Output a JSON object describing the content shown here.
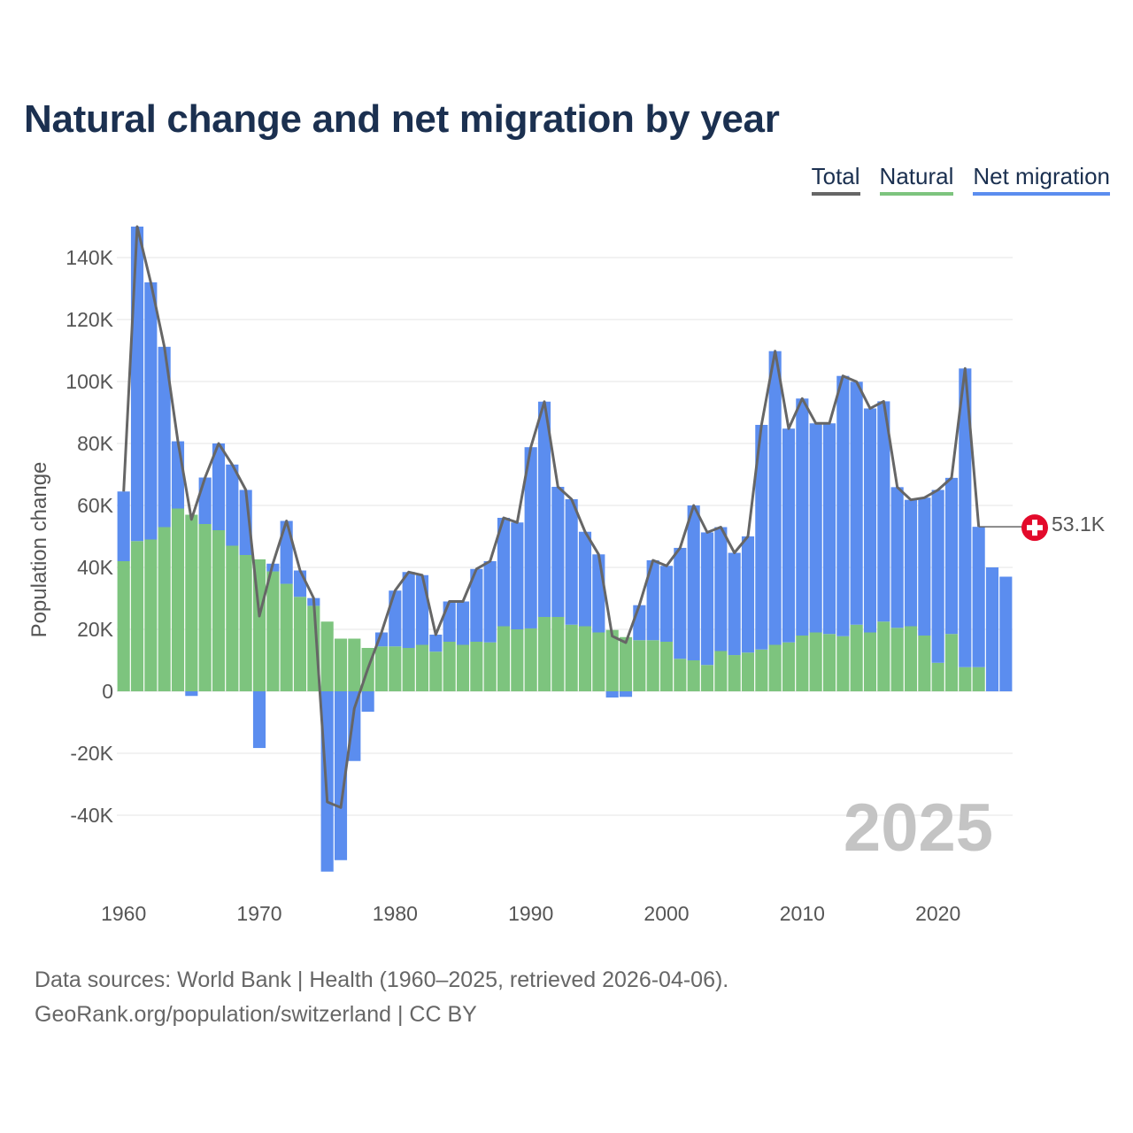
{
  "title": "Natural change and net migration by year",
  "legend": [
    {
      "label": "Total",
      "color": "#666666"
    },
    {
      "label": "Natural",
      "color": "#7dc47e"
    },
    {
      "label": "Net migration",
      "color": "#5b8def"
    }
  ],
  "watermark_year": "2025",
  "end_label": "53.1K",
  "footer": {
    "line1": "Data sources: World Bank | Health (1960–2025, retrieved 2026-04-06).",
    "line2": "GeoRank.org/population/switzerland | CC BY"
  },
  "colors": {
    "natural": "#7dc47e",
    "migration": "#5b8def",
    "total": "#666666",
    "grid": "#e6e6e6",
    "marker": "#e30a2b"
  },
  "chart_data": {
    "type": "bar",
    "stacked": true,
    "title": "Natural change and net migration by year",
    "ylabel": "Population change",
    "xlabel": "",
    "ylim": [
      -60000,
      150000
    ],
    "yticks": [
      -40000,
      -20000,
      0,
      20000,
      40000,
      60000,
      80000,
      100000,
      120000,
      140000
    ],
    "ytick_labels": [
      "-40K",
      "-20K",
      "0",
      "20K",
      "40K",
      "60K",
      "80K",
      "100K",
      "120K",
      "140K"
    ],
    "xticks": [
      1960,
      1970,
      1980,
      1990,
      2000,
      2010,
      2020
    ],
    "x": [
      1960,
      1961,
      1962,
      1963,
      1964,
      1965,
      1966,
      1967,
      1968,
      1969,
      1970,
      1971,
      1972,
      1973,
      1974,
      1975,
      1976,
      1977,
      1978,
      1979,
      1980,
      1981,
      1982,
      1983,
      1984,
      1985,
      1986,
      1987,
      1988,
      1989,
      1990,
      1991,
      1992,
      1993,
      1994,
      1995,
      1996,
      1997,
      1998,
      1999,
      2000,
      2001,
      2002,
      2003,
      2004,
      2005,
      2006,
      2007,
      2008,
      2009,
      2010,
      2011,
      2012,
      2013,
      2014,
      2015,
      2016,
      2017,
      2018,
      2019,
      2020,
      2021,
      2022,
      2023,
      2024,
      2025
    ],
    "series": [
      {
        "name": "Natural",
        "values": [
          42000,
          48500,
          49000,
          53000,
          59000,
          57000,
          54000,
          52000,
          47000,
          44000,
          42600,
          38700,
          34700,
          30500,
          27600,
          22500,
          17000,
          17000,
          14000,
          14500,
          14500,
          14000,
          15000,
          12800,
          16000,
          15000,
          16000,
          15800,
          21000,
          20000,
          20300,
          24000,
          24000,
          21500,
          21000,
          19000,
          19800,
          17500,
          16500,
          16500,
          16000,
          10500,
          10000,
          8500,
          13000,
          11700,
          12500,
          13500,
          15000,
          15800,
          18000,
          19000,
          18500,
          17800,
          21500,
          19000,
          22500,
          20500,
          21000,
          18000,
          9200,
          18500,
          7800,
          7800,
          0,
          0
        ]
      },
      {
        "name": "Net migration",
        "values": [
          22500,
          101500,
          83000,
          58200,
          21700,
          -1500,
          15000,
          28000,
          26200,
          21000,
          -18300,
          2500,
          20300,
          8500,
          2500,
          -58200,
          -54500,
          -22500,
          -6600,
          4500,
          18000,
          24500,
          22500,
          5500,
          13000,
          14000,
          23500,
          26200,
          35000,
          34500,
          58500,
          69500,
          42000,
          40500,
          30500,
          25200,
          -2000,
          -1800,
          11300,
          25800,
          24500,
          35800,
          50000,
          42800,
          40000,
          33000,
          37500,
          72500,
          94800,
          69000,
          76500,
          67500,
          68000,
          84000,
          78400,
          72300,
          71100,
          45400,
          40800,
          44500,
          55800,
          50400,
          96400,
          45300,
          40000,
          37000
        ]
      },
      {
        "name": "Total",
        "values": [
          64500,
          150000,
          132000,
          111200,
          80700,
          55500,
          69000,
          80000,
          73200,
          65000,
          24300,
          41200,
          55000,
          39000,
          30100,
          -35700,
          -37500,
          -5500,
          7400,
          19000,
          32500,
          38500,
          37500,
          18300,
          29000,
          29000,
          39500,
          42000,
          56000,
          54500,
          78800,
          93500,
          66000,
          62000,
          51500,
          44200,
          17800,
          15700,
          27800,
          42300,
          40500,
          46300,
          60000,
          51300,
          53000,
          44700,
          50000,
          86000,
          109800,
          84800,
          94500,
          86500,
          86500,
          101800,
          99900,
          91300,
          93600,
          65900,
          61800,
          62500,
          65000,
          68900,
          104200,
          53100,
          40000,
          37000
        ]
      }
    ]
  }
}
